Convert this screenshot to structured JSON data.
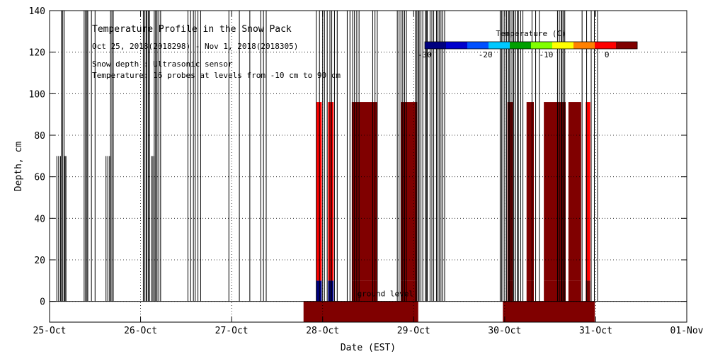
{
  "chart_data": {
    "type": "heatmap",
    "title": "Temperature Profile in the Snow Pack",
    "subtitle": "Oct 25, 2018(2018298) - Nov 1, 2018(2018305)",
    "notes": [
      "Snow depth : Ultrasonic sensor",
      "Temperature: 16 probes at levels from -10 cm to 90 cm"
    ],
    "xlabel": "Date (EST)",
    "ylabel": "Depth, cm",
    "x_ticks": [
      "25-Oct",
      "26-Oct",
      "27-Oct",
      "28-Oct",
      "29-Oct",
      "30-Oct",
      "31-Oct",
      "01-Nov"
    ],
    "xlim": [
      0,
      7
    ],
    "ylim": [
      -10,
      140
    ],
    "y_ticks": [
      0,
      20,
      40,
      60,
      80,
      100,
      120,
      140
    ],
    "grid": true,
    "ground_label": "ground level",
    "colorbar": {
      "label": "Temperature (C)",
      "range": [
        -30,
        5
      ],
      "ticks": [
        -30,
        -20,
        -10,
        0
      ],
      "stops": [
        "#000080",
        "#0000cd",
        "#0050ff",
        "#00c8ff",
        "#00a000",
        "#80ff00",
        "#ffff00",
        "#ff8000",
        "#ff0000",
        "#800000"
      ]
    },
    "snow_depth_spikes": [
      [
        0.08,
        0.12,
        70
      ],
      [
        0.13,
        0.16,
        140
      ],
      [
        0.16,
        0.18,
        70
      ],
      [
        0.38,
        0.41,
        140
      ],
      [
        0.42,
        0.5,
        140
      ],
      [
        0.62,
        0.66,
        70
      ],
      [
        0.67,
        0.7,
        140
      ],
      [
        1.03,
        1.06,
        140
      ],
      [
        1.07,
        1.1,
        140
      ],
      [
        1.12,
        1.15,
        70
      ],
      [
        1.15,
        1.18,
        140
      ],
      [
        1.18,
        1.22,
        140
      ],
      [
        1.52,
        1.58,
        140
      ],
      [
        1.6,
        1.66,
        140
      ],
      [
        1.97,
        2.2,
        140
      ],
      [
        2.32,
        2.38,
        140
      ],
      [
        2.93,
        3.0,
        140
      ],
      [
        3.02,
        3.08,
        140
      ],
      [
        3.1,
        3.16,
        140
      ],
      [
        3.27,
        3.33,
        140
      ],
      [
        3.35,
        3.4,
        140
      ],
      [
        3.55,
        3.6,
        140
      ],
      [
        3.82,
        3.86,
        140
      ],
      [
        3.88,
        3.92,
        140
      ],
      [
        4.02,
        4.05,
        140
      ],
      [
        4.06,
        4.1,
        140
      ],
      [
        4.13,
        4.15,
        140
      ],
      [
        4.18,
        4.22,
        140
      ],
      [
        4.25,
        4.28,
        140
      ],
      [
        4.3,
        4.34,
        140
      ],
      [
        4.95,
        4.98,
        140
      ],
      [
        5.0,
        5.04,
        140
      ],
      [
        5.05,
        5.09,
        140
      ],
      [
        5.1,
        5.14,
        140
      ],
      [
        5.15,
        5.2,
        140
      ],
      [
        5.3,
        5.38,
        140
      ],
      [
        5.58,
        5.62,
        140
      ],
      [
        5.63,
        5.66,
        140
      ],
      [
        5.85,
        5.95,
        140
      ],
      [
        5.95,
        6.02,
        140
      ]
    ],
    "temperature_blocks": [
      {
        "x": [
          2.93,
          2.99
        ],
        "y": [
          -10,
          10
        ],
        "t": -30
      },
      {
        "x": [
          2.93,
          2.99
        ],
        "y": [
          10,
          96
        ],
        "t": 0
      },
      {
        "x": [
          3.06,
          3.12
        ],
        "y": [
          -10,
          10
        ],
        "t": -28
      },
      {
        "x": [
          3.06,
          3.12
        ],
        "y": [
          10,
          96
        ],
        "t": -2
      },
      {
        "x": [
          3.32,
          3.6
        ],
        "y": [
          10,
          96
        ],
        "t": 5
      },
      {
        "x": [
          3.32,
          3.6
        ],
        "y": [
          0,
          10
        ],
        "t": 3
      },
      {
        "x": [
          3.86,
          4.04
        ],
        "y": [
          10,
          96
        ],
        "t": 5
      },
      {
        "x": [
          3.86,
          4.04
        ],
        "y": [
          0,
          10
        ],
        "t": 3
      },
      {
        "x": [
          5.03,
          5.09
        ],
        "y": [
          10,
          96
        ],
        "t": 5
      },
      {
        "x": [
          5.03,
          5.09
        ],
        "y": [
          0,
          10
        ],
        "t": 3
      },
      {
        "x": [
          5.24,
          5.32
        ],
        "y": [
          10,
          96
        ],
        "t": 5
      },
      {
        "x": [
          5.24,
          5.32
        ],
        "y": [
          0,
          10
        ],
        "t": 3
      },
      {
        "x": [
          5.43,
          5.67
        ],
        "y": [
          10,
          96
        ],
        "t": 5
      },
      {
        "x": [
          5.43,
          5.67
        ],
        "y": [
          0,
          10
        ],
        "t": 3
      },
      {
        "x": [
          5.7,
          5.84
        ],
        "y": [
          10,
          96
        ],
        "t": 5
      },
      {
        "x": [
          5.7,
          5.84
        ],
        "y": [
          0,
          10
        ],
        "t": 3
      },
      {
        "x": [
          5.89,
          5.94
        ],
        "y": [
          10,
          96
        ],
        "t": 1
      },
      {
        "x": [
          5.89,
          5.94
        ],
        "y": [
          0,
          10
        ],
        "t": 3
      },
      {
        "x": [
          2.79,
          4.05
        ],
        "y": [
          -10,
          0
        ],
        "t": 3
      },
      {
        "x": [
          4.98,
          5.99
        ],
        "y": [
          -10,
          0
        ],
        "t": 5
      }
    ]
  }
}
